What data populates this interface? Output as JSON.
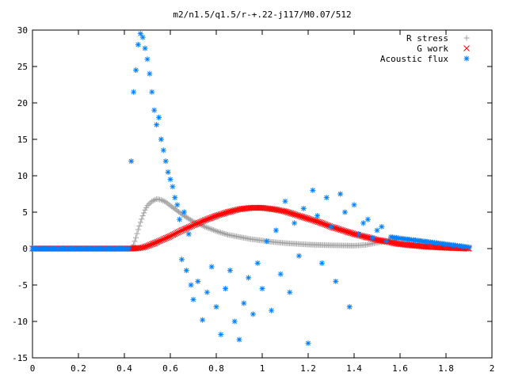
{
  "chart_data": {
    "type": "scatter",
    "title": "m2/n1.5/q1.5/r-+.22-j117/M0.07/512",
    "xlabel": "",
    "ylabel": "",
    "xlim": [
      0,
      2
    ],
    "ylim": [
      -15,
      30
    ],
    "x_ticks": [
      "0",
      "0.2",
      "0.4",
      "0.6",
      "0.8",
      "1",
      "1.2",
      "1.4",
      "1.6",
      "1.8",
      "2"
    ],
    "y_ticks": [
      "-15",
      "-10",
      "-5",
      "0",
      "5",
      "10",
      "15",
      "20",
      "25",
      "30"
    ],
    "grid": false,
    "legend_position": "top-right",
    "series": [
      {
        "name": "R stress",
        "marker": "plus",
        "color": "#a0a0a0",
        "points": [
          [
            0.0,
            0.0
          ],
          [
            0.2,
            0.0
          ],
          [
            0.43,
            0.0
          ],
          [
            0.44,
            0.5
          ],
          [
            0.45,
            1.5
          ],
          [
            0.46,
            2.6
          ],
          [
            0.47,
            3.6
          ],
          [
            0.48,
            4.5
          ],
          [
            0.49,
            5.3
          ],
          [
            0.5,
            5.9
          ],
          [
            0.52,
            6.5
          ],
          [
            0.54,
            6.8
          ],
          [
            0.56,
            6.7
          ],
          [
            0.58,
            6.4
          ],
          [
            0.6,
            5.9
          ],
          [
            0.63,
            5.2
          ],
          [
            0.66,
            4.5
          ],
          [
            0.7,
            3.7
          ],
          [
            0.75,
            3.0
          ],
          [
            0.8,
            2.4
          ],
          [
            0.85,
            1.9
          ],
          [
            0.9,
            1.6
          ],
          [
            0.95,
            1.3
          ],
          [
            1.0,
            1.1
          ],
          [
            1.05,
            0.9
          ],
          [
            1.1,
            0.75
          ],
          [
            1.15,
            0.65
          ],
          [
            1.2,
            0.55
          ],
          [
            1.3,
            0.45
          ],
          [
            1.4,
            0.4
          ],
          [
            1.45,
            0.5
          ],
          [
            1.5,
            0.8
          ],
          [
            1.55,
            1.1
          ],
          [
            1.6,
            1.3
          ],
          [
            1.65,
            1.2
          ],
          [
            1.7,
            1.0
          ],
          [
            1.75,
            0.8
          ],
          [
            1.8,
            0.55
          ],
          [
            1.85,
            0.35
          ],
          [
            1.9,
            0.1
          ]
        ]
      },
      {
        "name": "G work",
        "marker": "cross",
        "color": "#ff0000",
        "points": [
          [
            0.0,
            0.0
          ],
          [
            0.2,
            0.0
          ],
          [
            0.43,
            0.0
          ],
          [
            0.46,
            0.05
          ],
          [
            0.48,
            0.15
          ],
          [
            0.5,
            0.35
          ],
          [
            0.52,
            0.6
          ],
          [
            0.55,
            1.0
          ],
          [
            0.6,
            1.7
          ],
          [
            0.65,
            2.5
          ],
          [
            0.7,
            3.2
          ],
          [
            0.75,
            3.9
          ],
          [
            0.8,
            4.5
          ],
          [
            0.85,
            5.0
          ],
          [
            0.9,
            5.4
          ],
          [
            0.95,
            5.6
          ],
          [
            1.0,
            5.6
          ],
          [
            1.05,
            5.4
          ],
          [
            1.1,
            5.1
          ],
          [
            1.15,
            4.6
          ],
          [
            1.2,
            4.1
          ],
          [
            1.25,
            3.6
          ],
          [
            1.3,
            3.0
          ],
          [
            1.35,
            2.5
          ],
          [
            1.4,
            2.0
          ],
          [
            1.45,
            1.6
          ],
          [
            1.5,
            1.2
          ],
          [
            1.55,
            0.9
          ],
          [
            1.6,
            0.6
          ],
          [
            1.65,
            0.45
          ],
          [
            1.7,
            0.3
          ],
          [
            1.75,
            0.2
          ],
          [
            1.8,
            0.12
          ],
          [
            1.85,
            0.06
          ],
          [
            1.9,
            0.0
          ]
        ]
      },
      {
        "name": "Acoustic flux",
        "marker": "star",
        "color": "#0080ff",
        "points": [
          [
            0.0,
            0.0
          ],
          [
            0.1,
            0.0
          ],
          [
            0.2,
            0.0
          ],
          [
            0.3,
            0.0
          ],
          [
            0.42,
            0.0
          ],
          [
            0.43,
            12.0
          ],
          [
            0.44,
            21.5
          ],
          [
            0.45,
            24.5
          ],
          [
            0.46,
            28.0
          ],
          [
            0.47,
            29.5
          ],
          [
            0.48,
            29.0
          ],
          [
            0.49,
            27.5
          ],
          [
            0.5,
            26.0
          ],
          [
            0.51,
            24.0
          ],
          [
            0.52,
            21.5
          ],
          [
            0.53,
            19.0
          ],
          [
            0.54,
            17.0
          ],
          [
            0.55,
            18.0
          ],
          [
            0.56,
            15.0
          ],
          [
            0.57,
            13.5
          ],
          [
            0.58,
            12.0
          ],
          [
            0.59,
            10.5
          ],
          [
            0.6,
            9.5
          ],
          [
            0.61,
            8.5
          ],
          [
            0.62,
            7.0
          ],
          [
            0.63,
            6.0
          ],
          [
            0.64,
            4.0
          ],
          [
            0.65,
            -1.5
          ],
          [
            0.66,
            5.0
          ],
          [
            0.67,
            -3.0
          ],
          [
            0.68,
            2.0
          ],
          [
            0.69,
            -5.0
          ],
          [
            0.7,
            -7.0
          ],
          [
            0.72,
            -4.5
          ],
          [
            0.74,
            -9.8
          ],
          [
            0.76,
            -6.0
          ],
          [
            0.78,
            -2.5
          ],
          [
            0.8,
            -8.0
          ],
          [
            0.82,
            -11.8
          ],
          [
            0.84,
            -5.5
          ],
          [
            0.86,
            -3.0
          ],
          [
            0.88,
            -10.0
          ],
          [
            0.9,
            -12.5
          ],
          [
            0.92,
            -7.5
          ],
          [
            0.94,
            -4.0
          ],
          [
            0.96,
            -9.0
          ],
          [
            0.98,
            -2.0
          ],
          [
            1.0,
            -5.5
          ],
          [
            1.02,
            1.0
          ],
          [
            1.04,
            -8.5
          ],
          [
            1.06,
            2.5
          ],
          [
            1.08,
            -3.5
          ],
          [
            1.1,
            6.5
          ],
          [
            1.12,
            -6.0
          ],
          [
            1.14,
            3.5
          ],
          [
            1.16,
            -1.0
          ],
          [
            1.18,
            5.5
          ],
          [
            1.2,
            -13.0
          ],
          [
            1.22,
            8.0
          ],
          [
            1.24,
            4.5
          ],
          [
            1.26,
            -2.0
          ],
          [
            1.28,
            7.0
          ],
          [
            1.3,
            3.0
          ],
          [
            1.32,
            -4.5
          ],
          [
            1.34,
            7.5
          ],
          [
            1.36,
            5.0
          ],
          [
            1.38,
            -8.0
          ],
          [
            1.4,
            6.0
          ],
          [
            1.42,
            2.0
          ],
          [
            1.44,
            3.5
          ],
          [
            1.46,
            4.0
          ],
          [
            1.48,
            1.5
          ],
          [
            1.5,
            2.5
          ],
          [
            1.52,
            3.0
          ],
          [
            1.54,
            1.0
          ],
          [
            1.56,
            1.6
          ],
          [
            1.6,
            1.4
          ],
          [
            1.65,
            1.2
          ],
          [
            1.7,
            1.0
          ],
          [
            1.75,
            0.8
          ],
          [
            1.8,
            0.6
          ],
          [
            1.85,
            0.4
          ],
          [
            1.9,
            0.2
          ]
        ]
      }
    ]
  }
}
